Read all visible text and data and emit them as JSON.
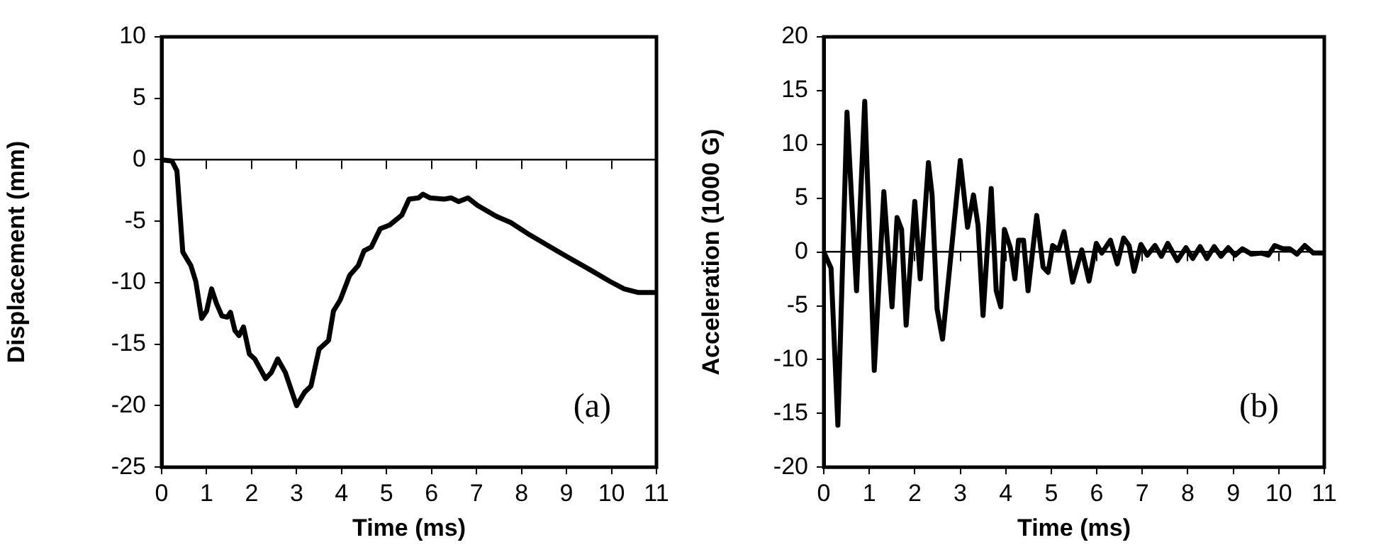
{
  "chart_data": [
    {
      "type": "line",
      "xlabel": "Time (ms)",
      "ylabel": "Displacement (mm)",
      "annotations": [
        "(a)"
      ],
      "color": "#000000",
      "marker": "none",
      "line_style": "solid",
      "xlim": [
        0,
        11
      ],
      "xticks": [
        0,
        1,
        2,
        3,
        4,
        5,
        6,
        7,
        8,
        9,
        10,
        11
      ],
      "ylim": [
        -25,
        10
      ],
      "yticks": [
        -25,
        -20,
        -15,
        -10,
        -5,
        0,
        5,
        10
      ],
      "x": [
        0,
        0.23,
        0.34,
        0.47,
        0.65,
        0.76,
        0.89,
        1.0,
        1.11,
        1.22,
        1.34,
        1.46,
        1.53,
        1.63,
        1.72,
        1.82,
        1.95,
        2.07,
        2.31,
        2.44,
        2.58,
        2.75,
        3.0,
        3.18,
        3.32,
        3.5,
        3.71,
        3.82,
        3.97,
        4.18,
        4.37,
        4.5,
        4.66,
        4.86,
        5.07,
        5.34,
        5.5,
        5.71,
        5.81,
        5.97,
        6.28,
        6.44,
        6.6,
        6.81,
        7.02,
        7.44,
        7.76,
        8.18,
        8.6,
        9.02,
        9.55,
        9.97,
        10.28,
        10.6,
        11
      ],
      "values": [
        0,
        -0.1,
        -0.9,
        -7.5,
        -8.6,
        -9.9,
        -12.9,
        -12.3,
        -10.5,
        -11.7,
        -12.7,
        -12.8,
        -12.4,
        -13.9,
        -14.3,
        -13.6,
        -15.8,
        -16.2,
        -17.8,
        -17.3,
        -16.2,
        -17.3,
        -20,
        -18.9,
        -18.4,
        -15.4,
        -14.7,
        -12.3,
        -11.4,
        -9.4,
        -8.6,
        -7.4,
        -7.1,
        -5.6,
        -5.3,
        -4.5,
        -3.2,
        -3.1,
        -2.8,
        -3.1,
        -3.2,
        -3.1,
        -3.4,
        -3.1,
        -3.7,
        -4.6,
        -5.1,
        -6.1,
        -7.0,
        -7.9,
        -9.0,
        -9.9,
        -10.5,
        -10.8,
        -10.8
      ]
    },
    {
      "type": "line",
      "xlabel": "Time (ms)",
      "ylabel": "Acceleration (1000 G)",
      "annotations": [
        "(b)"
      ],
      "color": "#000000",
      "marker": "none",
      "line_style": "solid",
      "xlim": [
        0,
        11
      ],
      "xticks": [
        0,
        1,
        2,
        3,
        4,
        5,
        6,
        7,
        8,
        9,
        10,
        11
      ],
      "ylim": [
        -20,
        20
      ],
      "yticks": [
        -20,
        -15,
        -10,
        -5,
        0,
        5,
        10,
        15,
        20
      ],
      "x": [
        0,
        0.16,
        0.31,
        0.51,
        0.72,
        0.9,
        1.11,
        1.32,
        1.5,
        1.61,
        1.71,
        1.81,
        2.0,
        2.12,
        2.3,
        2.38,
        2.49,
        2.61,
        2.82,
        3.0,
        3.16,
        3.29,
        3.39,
        3.5,
        3.68,
        3.79,
        3.89,
        3.97,
        4.1,
        4.2,
        4.28,
        4.39,
        4.49,
        4.68,
        4.82,
        4.93,
        5.03,
        5.16,
        5.28,
        5.47,
        5.67,
        5.83,
        5.99,
        6.11,
        6.3,
        6.45,
        6.59,
        6.71,
        6.82,
        6.97,
        7.11,
        7.28,
        7.42,
        7.56,
        7.77,
        7.96,
        8.11,
        8.27,
        8.42,
        8.58,
        8.73,
        8.89,
        9.04,
        9.2,
        9.4,
        9.62,
        9.77,
        9.91,
        10.09,
        10.24,
        10.4,
        10.57,
        10.76,
        11
      ],
      "values": [
        0,
        -1.5,
        -16.1,
        13.0,
        -3.6,
        14.0,
        -11.0,
        5.6,
        -5.1,
        3.2,
        2.1,
        -6.8,
        4.7,
        -2.5,
        8.3,
        5.3,
        -5.3,
        -8.1,
        0.8,
        8.5,
        2.3,
        5.3,
        2.5,
        -5.9,
        5.9,
        -3.6,
        -5.1,
        2.1,
        0.4,
        -2.5,
        1.1,
        1.1,
        -3.6,
        3.4,
        -1.4,
        -1.9,
        0.6,
        0.2,
        1.9,
        -2.8,
        0.2,
        -2.7,
        0.8,
        -0.1,
        1.1,
        -1.1,
        1.3,
        0.6,
        -1.8,
        0.7,
        -0.3,
        0.6,
        -0.4,
        0.8,
        -0.8,
        0.4,
        -0.6,
        0.5,
        -0.6,
        0.5,
        -0.4,
        0.4,
        -0.3,
        0.3,
        -0.2,
        -0.1,
        -0.3,
        0.6,
        0.3,
        0.3,
        -0.2,
        0.6,
        -0.1,
        -0.1
      ]
    }
  ]
}
